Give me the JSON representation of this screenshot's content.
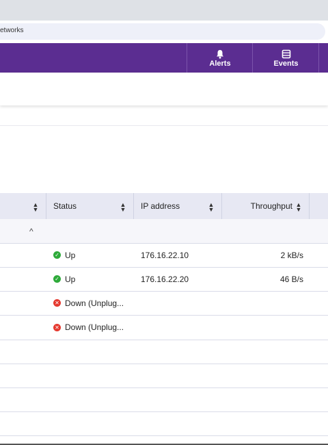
{
  "browser": {
    "url_text": "etworks"
  },
  "navbar": {
    "buttons": [
      {
        "label": "Alerts",
        "icon": "bell-icon"
      },
      {
        "label": "Events",
        "icon": "list-icon"
      }
    ]
  },
  "table": {
    "columns": [
      {
        "label": ""
      },
      {
        "label": "Status"
      },
      {
        "label": "IP address"
      },
      {
        "label": "Throughput"
      }
    ],
    "sort_glyph": "▲▼",
    "group_toggle": "^",
    "rows": [
      {
        "status": "Up",
        "state": "up",
        "ip": "176.16.22.10",
        "throughput": "2 kB/s"
      },
      {
        "status": "Up",
        "state": "up",
        "ip": "176.16.22.20",
        "throughput": "46 B/s"
      },
      {
        "status": "Down (Unplug...",
        "state": "down",
        "ip": "",
        "throughput": ""
      },
      {
        "status": "Down (Unplug...",
        "state": "down",
        "ip": "",
        "throughput": ""
      },
      {
        "status": "",
        "state": "",
        "ip": "",
        "throughput": ""
      },
      {
        "status": "",
        "state": "",
        "ip": "",
        "throughput": ""
      },
      {
        "status": "",
        "state": "",
        "ip": "",
        "throughput": ""
      },
      {
        "status": "",
        "state": "",
        "ip": "",
        "throughput": ""
      }
    ]
  },
  "colors": {
    "nav_purple": "#5b2d91",
    "status_up": "#2eaa3a",
    "status_down": "#e5392f"
  }
}
